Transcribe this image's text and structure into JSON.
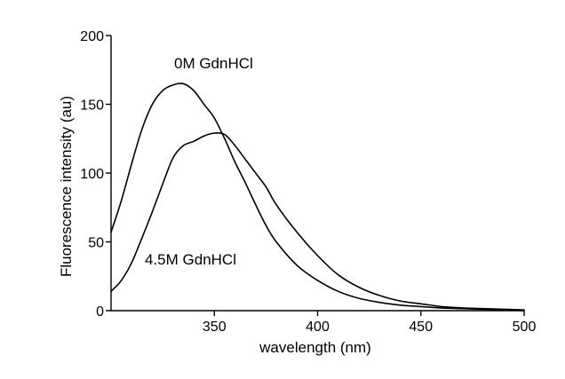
{
  "chart_data": {
    "type": "line",
    "xlabel": "wavelength (nm)",
    "ylabel": "Fluorescence intensity (au)",
    "xlim": [
      300,
      500
    ],
    "ylim": [
      0,
      200
    ],
    "xticks": [
      350,
      400,
      450,
      500
    ],
    "yticks": [
      0,
      50,
      100,
      150,
      200
    ],
    "grid": false,
    "series": [
      {
        "name": "0M GdnHCl",
        "color": "#000000",
        "x": [
          300,
          305,
          310,
          315,
          320,
          325,
          330,
          335,
          340,
          345,
          350,
          355,
          360,
          365,
          370,
          375,
          380,
          390,
          400,
          410,
          420,
          430,
          440,
          450,
          460,
          470,
          480,
          490,
          500
        ],
        "y": [
          57,
          80,
          107,
          132,
          150,
          160,
          164,
          165,
          160,
          150,
          140,
          125,
          108,
          93,
          77,
          62,
          50,
          33,
          22,
          14,
          9,
          6,
          4,
          3,
          2,
          1.5,
          1,
          0.5,
          0
        ]
      },
      {
        "name": "4.5M GdnHCl",
        "color": "#000000",
        "x": [
          300,
          305,
          310,
          315,
          320,
          325,
          330,
          335,
          340,
          345,
          350,
          355,
          360,
          365,
          370,
          375,
          380,
          390,
          400,
          410,
          420,
          430,
          440,
          450,
          460,
          470,
          480,
          490,
          500
        ],
        "y": [
          14,
          22,
          35,
          53,
          72,
          92,
          111,
          120,
          123,
          127,
          129,
          128,
          120,
          110,
          100,
          90,
          77,
          57,
          40,
          26,
          17,
          11,
          7,
          5,
          3,
          2,
          1.5,
          1,
          0.5
        ]
      }
    ],
    "annotations": [
      "0M GdnHCl",
      "4.5M GdnHCl"
    ]
  }
}
